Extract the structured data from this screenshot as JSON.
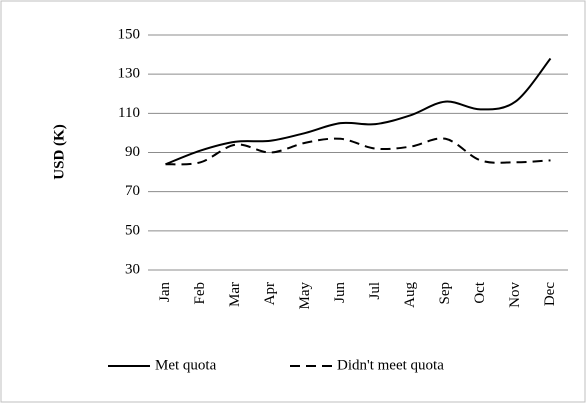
{
  "chart_data": {
    "type": "line",
    "y_label": "USD (K)",
    "categories": [
      "Jan",
      "Feb",
      "Mar",
      "Apr",
      "May",
      "Jun",
      "Jul",
      "Aug",
      "Sep",
      "Oct",
      "Nov",
      "Dec"
    ],
    "series": [
      {
        "name": "Met quota",
        "color": "#000000",
        "line_style": "solid",
        "values": [
          84,
          91,
          95.5,
          96,
          100,
          105,
          104.5,
          109,
          116,
          112,
          116,
          138
        ]
      },
      {
        "name": "Didn't meet quota",
        "color": "#000000",
        "line_style": "dashed",
        "values": [
          84,
          85,
          94,
          90,
          95,
          97,
          92,
          93,
          97,
          86,
          85,
          86
        ]
      }
    ],
    "ylim": [
      30,
      150
    ],
    "yticks": [
      30,
      50,
      70,
      90,
      110,
      130,
      150
    ],
    "grid": true,
    "smooth": true,
    "legend": "bottom"
  }
}
